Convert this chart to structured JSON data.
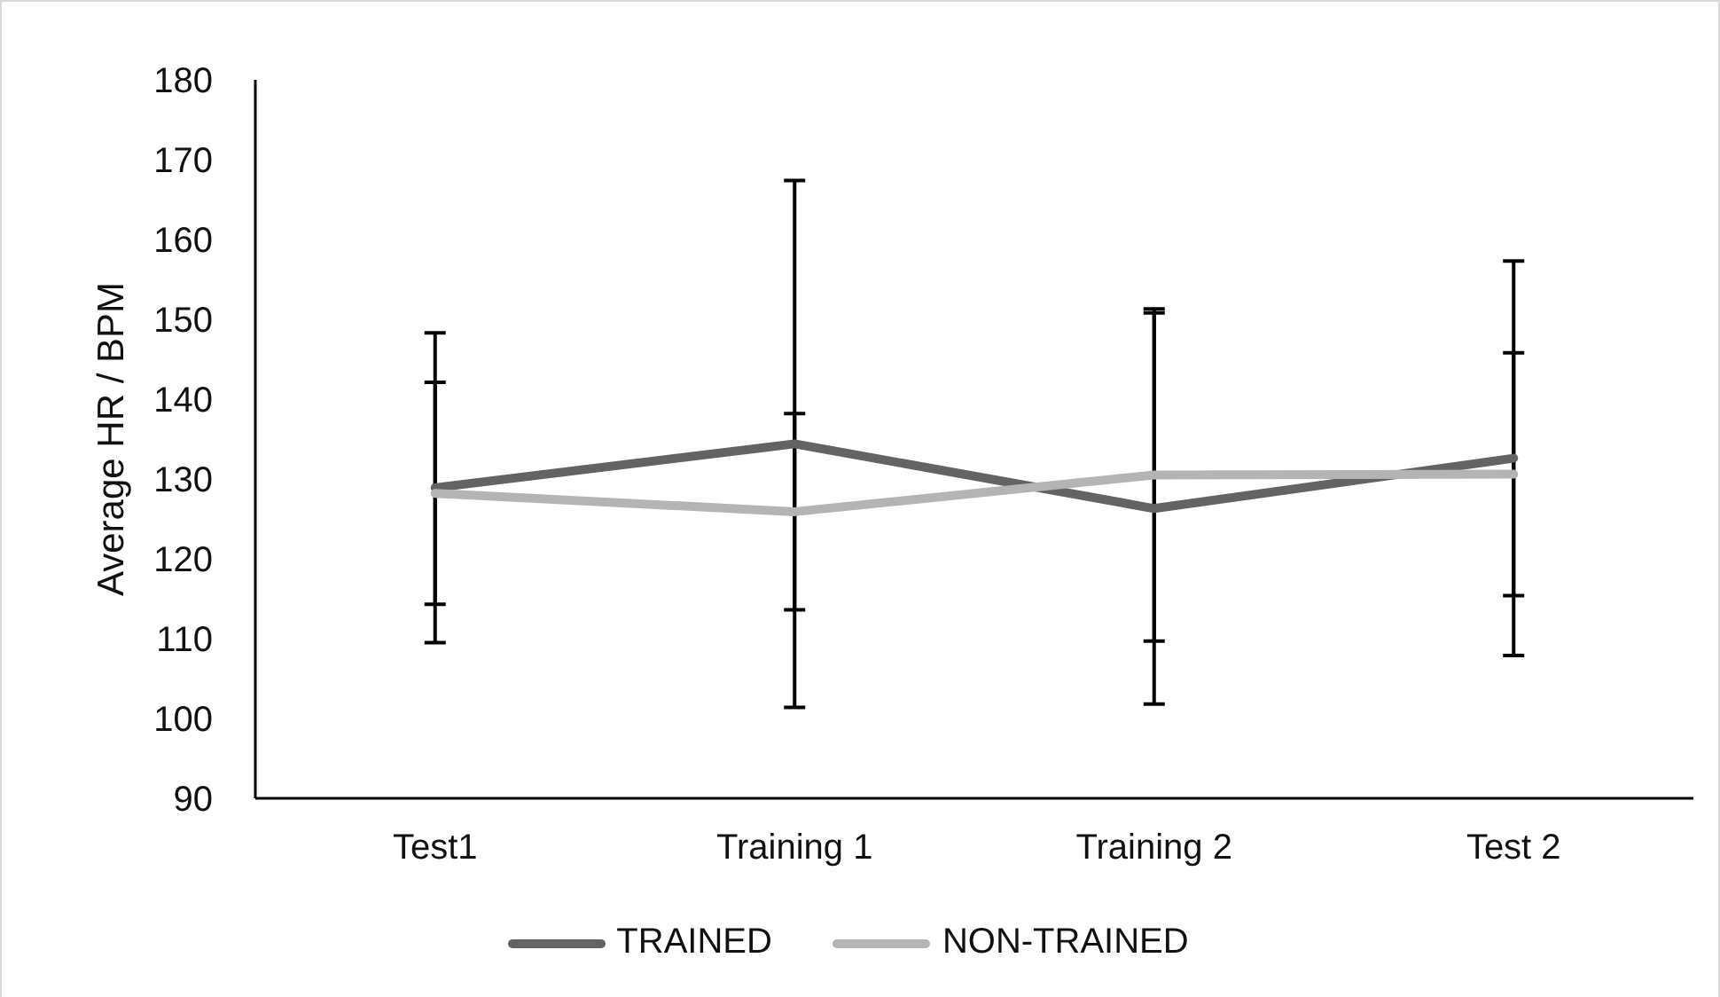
{
  "chart_data": {
    "type": "line",
    "ylabel": "Average HR / BPM",
    "categories": [
      "Test1",
      "Training 1",
      "Training 2",
      "Test 2"
    ],
    "series": [
      {
        "name": "TRAINED",
        "color": "#636363",
        "values": [
          128.9,
          134.4,
          126.3,
          132.6
        ],
        "errors": [
          19.4,
          33,
          24.5,
          24.7
        ]
      },
      {
        "name": "NON-TRAINED",
        "color": "#b4b4b4",
        "values": [
          128.2,
          125.9,
          130.5,
          130.6
        ],
        "errors": [
          13.9,
          12.3,
          20.8,
          15.2
        ]
      }
    ],
    "ylim": [
      90,
      180
    ],
    "yticks": [
      90,
      100,
      110,
      120,
      130,
      140,
      150,
      160,
      170,
      180
    ],
    "legend": "bottom",
    "marker": "none"
  }
}
